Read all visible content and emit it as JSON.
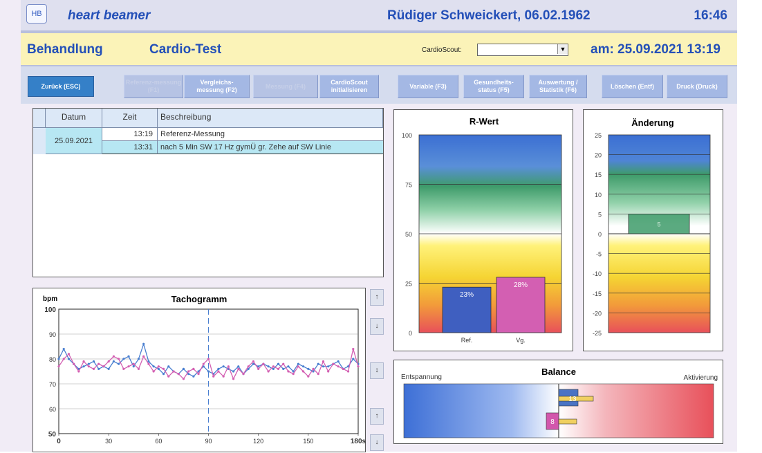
{
  "header": {
    "logo_text": "HB",
    "brand": "heart beamer",
    "patient": "Rüdiger Schweickert, 06.02.1962",
    "time": "16:46"
  },
  "subheader": {
    "section": "Behandlung",
    "module": "Cardio-Test",
    "cardioscout_label": "CardioScout:",
    "cardioscout_value": "",
    "date_label": "am:",
    "datetime": "25.09.2021 13:19"
  },
  "toolbar": {
    "buttons": [
      {
        "label": "Zurück (ESC)",
        "state": "active"
      },
      {
        "label": "Referenz-messung (F1)",
        "state": "disabled"
      },
      {
        "label": "Vergleichs-\nmessung (F2)",
        "state": "normal"
      },
      {
        "label": "Messung (F4)",
        "state": "disabled"
      },
      {
        "label": "CardioScout\ninitialisieren",
        "state": "normal"
      },
      {
        "label": "Variable (F3)",
        "state": "normal"
      },
      {
        "label": "Gesundheits-\nstatus (F5)",
        "state": "normal"
      },
      {
        "label": "Auswertung /\nStatistik (F6)",
        "state": "normal"
      },
      {
        "label": "Löschen (Entf)",
        "state": "normal"
      },
      {
        "label": "Druck (Druck)",
        "state": "normal"
      }
    ]
  },
  "measurements": {
    "columns": [
      "Datum",
      "Zeit",
      "Beschreibung"
    ],
    "date": "25.09.2021",
    "rows": [
      {
        "time": "13:19",
        "description": "Referenz-Messung"
      },
      {
        "time": "13:31",
        "description": "nach 5 Min SW 17 Hz gymÜ gr. Zehe auf SW Linie"
      }
    ]
  },
  "tachogram": {
    "title": "Tachogramm",
    "ylabel": "bpm",
    "xlabel_unit": "180s",
    "nav_up": "↑",
    "nav_down": "↓",
    "nav_split": "↕"
  },
  "rwert": {
    "title": "R-Wert"
  },
  "aenderung": {
    "title": "Änderung",
    "value_label": "5"
  },
  "balance": {
    "title": "Balance",
    "left_label": "Entspannung",
    "right_label": "Aktivierung",
    "values": [
      {
        "label": "13",
        "side": "right",
        "color": "#4a73c4"
      },
      {
        "label": "8",
        "side": "left",
        "color": "#d257ac"
      }
    ]
  },
  "chart_data": [
    {
      "type": "line",
      "title": "Tachogramm",
      "ylabel": "bpm",
      "xlim": [
        0,
        180
      ],
      "ylim": [
        50,
        100
      ],
      "xticks": [
        "0",
        "30",
        "60",
        "90",
        "120",
        "150",
        "180s"
      ],
      "yticks": [
        "50",
        "60",
        "70",
        "80",
        "90",
        "100"
      ],
      "series": [
        {
          "color": "#4a7fd0",
          "x": [
            0,
            3,
            6,
            9,
            12,
            15,
            18,
            21,
            24,
            27,
            30,
            33,
            36,
            39,
            42,
            45,
            48,
            51,
            54,
            57,
            60,
            63,
            66,
            69,
            72,
            75,
            78,
            81,
            84,
            87,
            90,
            93,
            96,
            99,
            102,
            105,
            108,
            111,
            114,
            117,
            120,
            123,
            126,
            129,
            132,
            135,
            138,
            141,
            144,
            147,
            150,
            153,
            156,
            159,
            162,
            165,
            168,
            171,
            174,
            177,
            180
          ],
          "y": [
            80,
            84,
            80,
            78,
            76,
            77,
            78,
            79,
            76,
            77,
            76,
            79,
            78,
            80,
            81,
            77,
            80,
            86,
            79,
            77,
            76,
            74,
            77,
            75,
            74,
            76,
            74,
            73,
            75,
            77,
            75,
            74,
            76,
            77,
            76,
            75,
            77,
            74,
            76,
            78,
            77,
            78,
            77,
            76,
            78,
            76,
            77,
            75,
            78,
            77,
            76,
            75,
            78,
            77,
            77,
            78,
            79,
            76,
            77,
            80,
            78
          ]
        },
        {
          "color": "#d35fb2",
          "x": [
            0,
            3,
            6,
            9,
            12,
            15,
            18,
            21,
            24,
            27,
            30,
            33,
            36,
            39,
            42,
            45,
            48,
            51,
            54,
            57,
            60,
            63,
            66,
            69,
            72,
            75,
            78,
            81,
            84,
            87,
            90,
            93,
            96,
            99,
            102,
            105,
            108,
            111,
            114,
            117,
            120,
            123,
            126,
            129,
            132,
            135,
            138,
            141,
            144,
            147,
            150,
            153,
            156,
            159,
            162,
            165,
            168,
            171,
            174,
            177,
            180
          ],
          "y": [
            77,
            80,
            82,
            78,
            75,
            79,
            77,
            76,
            78,
            77,
            79,
            81,
            80,
            76,
            77,
            78,
            76,
            81,
            78,
            75,
            77,
            76,
            73,
            75,
            74,
            72,
            75,
            76,
            74,
            78,
            80,
            73,
            75,
            73,
            77,
            72,
            76,
            74,
            77,
            79,
            76,
            78,
            75,
            77,
            76,
            78,
            75,
            74,
            77,
            75,
            73,
            76,
            74,
            79,
            75,
            78,
            77,
            76,
            75,
            84,
            77
          ]
        }
      ],
      "reference_line_x": 90
    },
    {
      "type": "bar",
      "title": "R-Wert",
      "categories": [
        "Ref.",
        "Vg."
      ],
      "values": [
        23,
        28
      ],
      "data_labels": [
        "23%",
        "28%"
      ],
      "colors": [
        "#3f5fc0",
        "#d35fb2"
      ],
      "ylim": [
        0,
        100
      ],
      "yticks": [
        "0",
        "25",
        "50",
        "75",
        "100"
      ]
    },
    {
      "type": "bar",
      "title": "Änderung",
      "values": [
        5
      ],
      "data_labels": [
        "5"
      ],
      "ylim": [
        -25,
        25
      ],
      "yticks": [
        "25",
        "20",
        "15",
        "10",
        "5",
        "0",
        "-5",
        "-10",
        "-15",
        "-20",
        "-25"
      ]
    }
  ]
}
